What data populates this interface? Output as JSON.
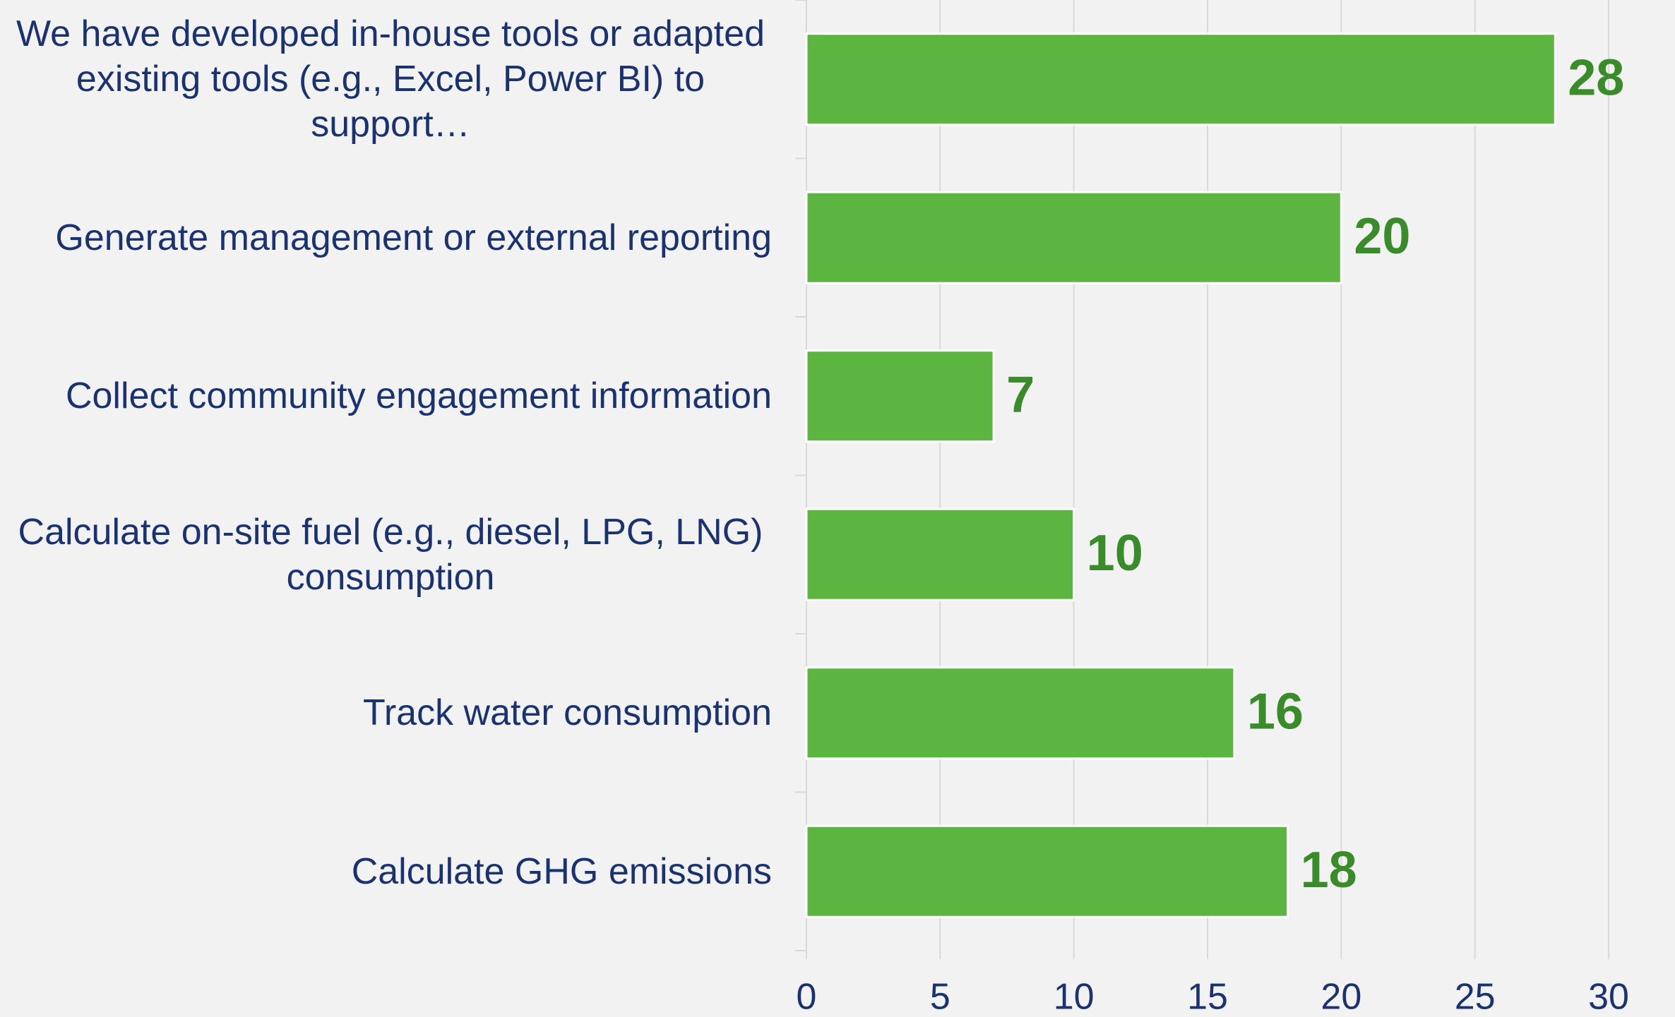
{
  "chart_data": {
    "type": "bar",
    "orientation": "horizontal",
    "categories": [
      "We have developed in-house tools or adapted existing tools (e.g., Excel, Power BI) to support…",
      "Generate management or external reporting",
      "Collect community engagement information",
      "Calculate on-site fuel (e.g., diesel, LPG, LNG) consumption",
      "Track water consumption",
      "Calculate GHG emissions"
    ],
    "values": [
      28,
      20,
      7,
      10,
      16,
      18
    ],
    "color": "#5bb540",
    "xlim": [
      0,
      30
    ],
    "xticks": [
      0,
      5,
      10,
      15,
      20,
      25,
      30
    ],
    "grid": true
  }
}
